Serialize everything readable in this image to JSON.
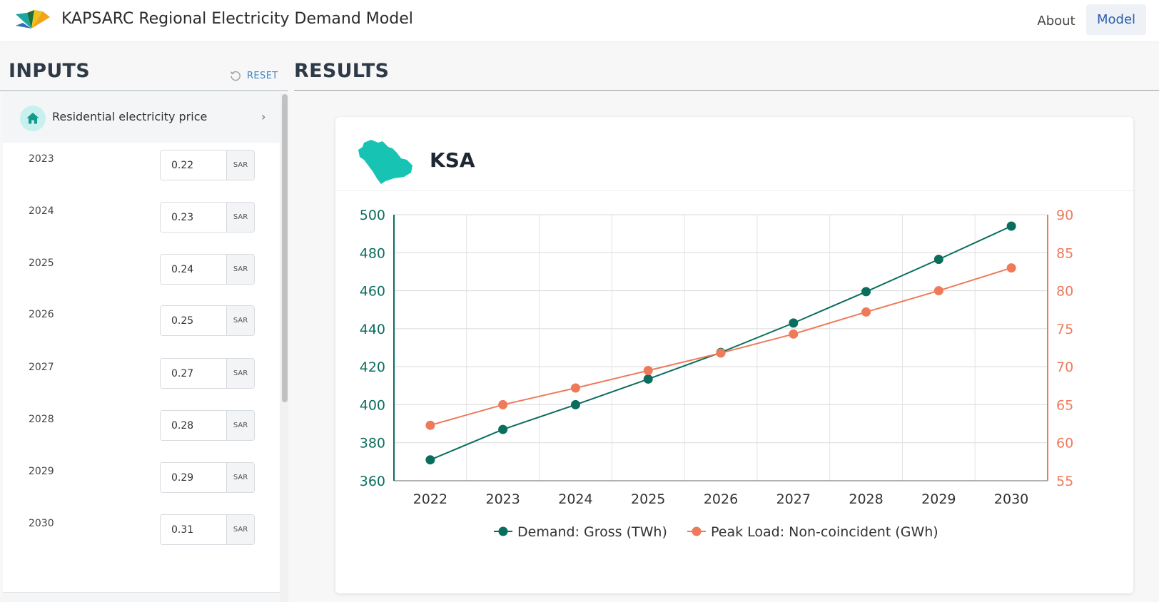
{
  "header": {
    "title": "KAPSARC Regional Electricity Demand Model",
    "nav": [
      {
        "label": "About",
        "active": false
      },
      {
        "label": "Model",
        "active": true
      }
    ]
  },
  "inputs": {
    "heading": "INPUTS",
    "reset_label": "RESET",
    "section": {
      "title": "Residential electricity price",
      "icon": "house-icon"
    },
    "prices": [
      {
        "year": "2023",
        "value": "0.22",
        "unit": "SAR"
      },
      {
        "year": "2024",
        "value": "0.23",
        "unit": "SAR"
      },
      {
        "year": "2025",
        "value": "0.24",
        "unit": "SAR"
      },
      {
        "year": "2026",
        "value": "0.25",
        "unit": "SAR"
      },
      {
        "year": "2027",
        "value": "0.27",
        "unit": "SAR"
      },
      {
        "year": "2028",
        "value": "0.28",
        "unit": "SAR"
      },
      {
        "year": "2029",
        "value": "0.29",
        "unit": "SAR"
      },
      {
        "year": "2030",
        "value": "0.31",
        "unit": "SAR"
      }
    ]
  },
  "results": {
    "heading": "RESULTS",
    "region": "KSA"
  },
  "colors": {
    "accent_blue": "#2a5fb0",
    "teal_series": "#0a6e5e",
    "orange_series": "#ee7a5a",
    "map_fill": "#17c3b2"
  },
  "chart_data": {
    "type": "line",
    "x": [
      "2022",
      "2023",
      "2024",
      "2025",
      "2026",
      "2027",
      "2028",
      "2029",
      "2030"
    ],
    "series": [
      {
        "name": "Demand: Gross (TWh)",
        "axis": "left",
        "color": "#0a6e5e",
        "values": [
          371,
          387,
          400,
          413.5,
          427.5,
          443,
          459.5,
          476.5,
          494
        ]
      },
      {
        "name": "Peak Load: Non-coincident (GWh)",
        "axis": "right",
        "color": "#ee7a5a",
        "values": [
          62.3,
          65,
          67.2,
          69.5,
          71.8,
          74.3,
          77.2,
          80,
          83
        ]
      }
    ],
    "y_left": {
      "ticks": [
        "360",
        "380",
        "400",
        "420",
        "440",
        "460",
        "480",
        "500"
      ],
      "lim": [
        360,
        500
      ]
    },
    "y_right": {
      "ticks": [
        "55",
        "60",
        "65",
        "70",
        "75",
        "80",
        "85",
        "90"
      ],
      "lim": [
        55,
        90
      ]
    },
    "grid": true,
    "legend_position": "bottom"
  }
}
